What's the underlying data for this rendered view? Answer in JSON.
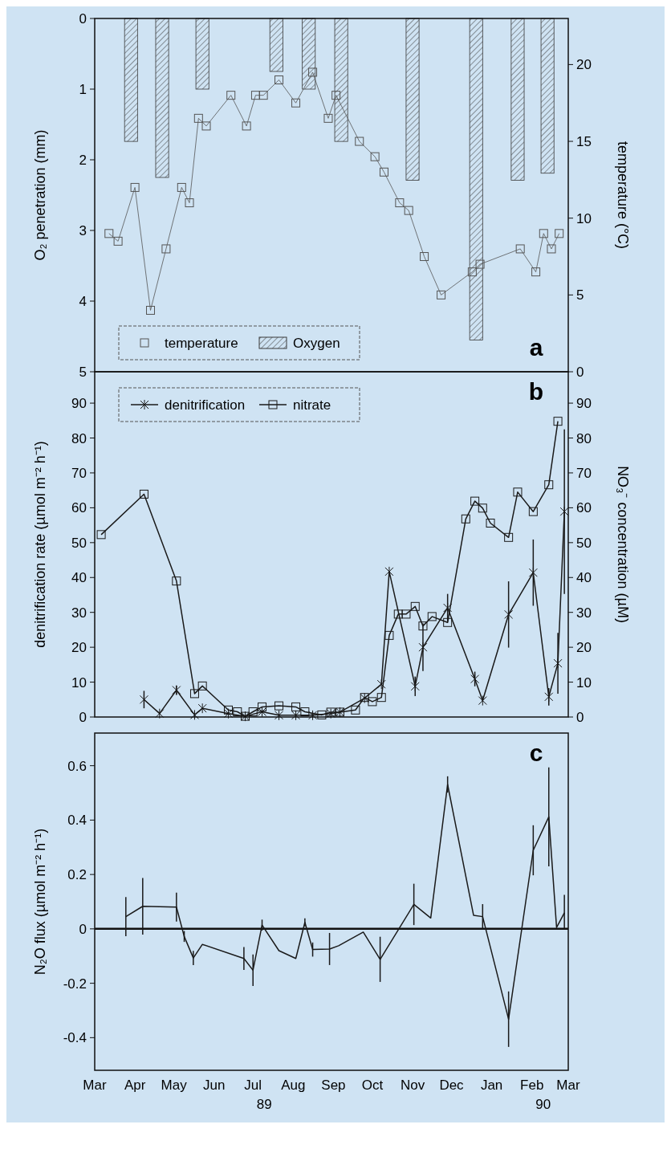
{
  "chart_data": [
    {
      "type": "line",
      "ylabel": "O₂ penetration (mm)",
      "y2label": "temperature (°C)",
      "xlim": [
        "1989-03-01",
        "1990-03-01"
      ],
      "ylim": [
        5,
        0
      ],
      "yticks": [
        0,
        1,
        2,
        3,
        4,
        5
      ],
      "y2lim": [
        0,
        23
      ],
      "y2ticks": [
        0,
        5,
        10,
        15,
        20
      ],
      "tick_labels": "y",
      "legend": "bottom left",
      "annotations": [
        "a"
      ],
      "series": [
        {
          "name": "temperature",
          "axis": "y2",
          "color": "#555555",
          "marker": "square",
          "x": [
            "1989-03-12",
            "1989-03-19",
            "1989-04-01",
            "1989-04-13",
            "1989-04-25",
            "1989-05-07",
            "1989-05-13",
            "1989-05-20",
            "1989-05-26",
            "1989-06-14",
            "1989-06-26",
            "1989-07-03",
            "1989-07-09",
            "1989-07-21",
            "1989-08-03",
            "1989-08-16",
            "1989-08-28",
            "1989-09-03",
            "1989-09-21",
            "1989-10-03",
            "1989-10-10",
            "1989-10-22",
            "1989-10-29",
            "1989-11-10",
            "1989-11-23",
            "1989-12-17",
            "1989-12-23",
            "1990-01-23",
            "1990-02-04",
            "1990-02-10",
            "1990-02-16",
            "1990-02-22"
          ],
          "values": [
            9,
            8.5,
            12,
            4,
            8,
            12,
            11,
            16.5,
            16,
            18,
            16,
            18,
            18,
            19,
            17.5,
            19.5,
            16.5,
            18,
            15,
            14,
            13,
            11,
            10.5,
            7.5,
            5,
            6.5,
            7,
            8,
            6.5,
            9,
            8,
            9
          ]
        },
        {
          "name": "Oxygen",
          "type": "bar",
          "color": "#3a3a3a",
          "x": [
            "1989-03-29",
            "1989-04-22",
            "1989-05-23",
            "1989-07-19",
            "1989-08-13",
            "1989-09-07",
            "1989-11-01",
            "1989-12-20",
            "1990-01-21",
            "1990-02-13"
          ],
          "values": [
            1.74,
            2.25,
            1.0,
            0.75,
            1.0,
            1.74,
            2.29,
            4.55,
            2.29,
            2.19
          ]
        }
      ]
    },
    {
      "type": "line",
      "ylabel": "denitrification rate (µmol m⁻² h⁻¹)",
      "y2label": "NO₃⁻ concentration (µM)",
      "xlim": [
        "1989-03-01",
        "1990-03-01"
      ],
      "ylim": [
        0,
        99
      ],
      "yticks": [
        0,
        10,
        20,
        30,
        40,
        50,
        60,
        70,
        80,
        90
      ],
      "y2lim": [
        0,
        99
      ],
      "y2ticks": [
        0,
        10,
        20,
        30,
        40,
        50,
        60,
        70,
        80,
        90
      ],
      "tick_labels": "y",
      "legend": "top left",
      "annotations": [
        "b"
      ],
      "series": [
        {
          "name": "denitrification",
          "color": "#1a1a1a",
          "marker": "cross",
          "x": [
            "1989-04-08",
            "1989-04-20",
            "1989-05-03",
            "1989-05-17",
            "1989-05-23",
            "1989-06-12",
            "1989-06-25",
            "1989-07-08",
            "1989-07-21",
            "1989-08-03",
            "1989-08-16",
            "1989-08-30",
            "1989-09-06",
            "1989-09-25",
            "1989-10-08",
            "1989-10-14",
            "1989-11-03",
            "1989-11-09",
            "1989-11-28",
            "1989-12-19",
            "1989-12-25",
            "1990-01-14",
            "1990-02-02",
            "1990-02-14",
            "1990-02-21",
            "1990-02-26"
          ],
          "values": [
            5,
            1,
            7.7,
            0.6,
            2.5,
            1,
            0.2,
            1.5,
            0.5,
            0.5,
            0.5,
            1,
            1.4,
            5.4,
            9.4,
            41.7,
            8.8,
            20,
            31.3,
            10.9,
            4.7,
            29.4,
            41.4,
            5.8,
            15.4,
            58.9
          ],
          "errors": [
            2.5,
            null,
            1.3,
            null,
            null,
            null,
            null,
            null,
            null,
            null,
            null,
            null,
            null,
            null,
            null,
            null,
            2.8,
            6.8,
            4,
            2.1,
            null,
            9.5,
            9.5,
            2.5,
            8.7,
            23.6
          ]
        },
        {
          "name": "nitrate",
          "axis": "y2",
          "color": "#1a1a1a",
          "marker": "square",
          "x": [
            "1989-03-06",
            "1989-04-08",
            "1989-05-03",
            "1989-05-17",
            "1989-05-23",
            "1989-06-12",
            "1989-06-19",
            "1989-06-25",
            "1989-07-01",
            "1989-07-08",
            "1989-07-21",
            "1989-08-03",
            "1989-08-10",
            "1989-08-23",
            "1989-08-30",
            "1989-09-06",
            "1989-09-18",
            "1989-09-25",
            "1989-10-01",
            "1989-10-08",
            "1989-10-14",
            "1989-10-21",
            "1989-10-27",
            "1989-11-03",
            "1989-11-09",
            "1989-11-16",
            "1989-11-28",
            "1989-12-12",
            "1989-12-19",
            "1989-12-25",
            "1989-12-31",
            "1990-01-14",
            "1990-01-21",
            "1990-02-02",
            "1990-02-14",
            "1990-02-21"
          ],
          "values": [
            52.3,
            63.9,
            39,
            6.7,
            8.9,
            2,
            1.5,
            0.2,
            1.5,
            2.9,
            3.2,
            2.9,
            1.5,
            0.6,
            1.4,
            1.4,
            2,
            5.6,
            4.4,
            5.6,
            23.4,
            29.5,
            29.5,
            31.7,
            26.1,
            28.8,
            27.1,
            56.8,
            61.9,
            59.9,
            55.6,
            51.5,
            64.5,
            58.9,
            66.6,
            84.8
          ]
        }
      ]
    },
    {
      "type": "line",
      "ylabel": "N₂O flux (µmol m⁻² h⁻¹)",
      "xlim": [
        "1989-03-01",
        "1990-03-01"
      ],
      "xticks": [
        {
          "value": "1989-03-01",
          "label": "Mar"
        },
        {
          "value": "1989-04-01",
          "label": "Apr"
        },
        {
          "value": "1989-05-01",
          "label": "May"
        },
        {
          "value": "1989-06-01",
          "label": "Jun"
        },
        {
          "value": "1989-07-01",
          "label": "Jul\n89"
        },
        {
          "value": "1989-08-01",
          "label": "Aug"
        },
        {
          "value": "1989-09-01",
          "label": "Sep"
        },
        {
          "value": "1989-10-01",
          "label": "Oct"
        },
        {
          "value": "1989-11-01",
          "label": "Nov"
        },
        {
          "value": "1989-12-01",
          "label": "Dec"
        },
        {
          "value": "1990-01-01",
          "label": "Jan"
        },
        {
          "value": "1990-02-01",
          "label": "Feb\n90"
        },
        {
          "value": "1990-03-01",
          "label": "Mar"
        }
      ],
      "ylim": [
        -0.52,
        0.72
      ],
      "yticks": [
        -0.4,
        -0.2,
        0,
        0.2,
        0.4,
        0.6
      ],
      "ref_lines": [
        {
          "axis": "y",
          "value": 0,
          "color": "#111111"
        }
      ],
      "annotations": [
        "c"
      ],
      "series": [
        {
          "color": "#1a1a1a",
          "x": [
            "1989-03-25",
            "1989-04-07",
            "1989-05-03",
            "1989-05-09",
            "1989-05-16",
            "1989-05-23",
            "1989-06-24",
            "1989-07-01",
            "1989-07-08",
            "1989-07-21",
            "1989-08-03",
            "1989-08-10",
            "1989-08-16",
            "1989-08-29",
            "1989-09-05",
            "1989-09-24",
            "1989-10-07",
            "1989-11-02",
            "1989-11-15",
            "1989-11-28",
            "1989-12-18",
            "1989-12-25",
            "1990-01-14",
            "1990-02-02",
            "1990-02-14",
            "1990-02-20",
            "1990-02-26"
          ],
          "values": [
            0.045,
            0.083,
            0.08,
            -0.028,
            -0.107,
            -0.057,
            -0.109,
            -0.152,
            0.014,
            -0.08,
            -0.109,
            0.024,
            -0.076,
            -0.074,
            -0.062,
            -0.012,
            -0.112,
            0.09,
            0.04,
            0.531,
            0.05,
            0.045,
            -0.332,
            0.289,
            0.412,
            0.005,
            0.059
          ],
          "errors": [
            0.072,
            0.104,
            0.053,
            0.02,
            0.026,
            null,
            0.042,
            0.058,
            0.02,
            null,
            null,
            0.015,
            0.026,
            0.059,
            null,
            null,
            0.083,
            0.076,
            null,
            0.03,
            null,
            0.046,
            0.102,
            0.092,
            0.182,
            null,
            [
              0,
              0.125
            ]
          ]
        }
      ]
    }
  ]
}
